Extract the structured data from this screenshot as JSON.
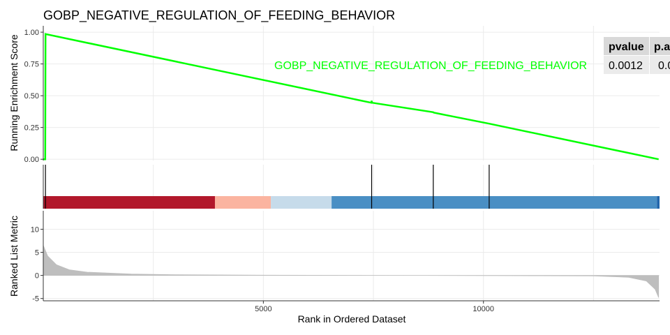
{
  "chart_data": {
    "type": "line",
    "title": "GOBP_NEGATIVE_REGULATION_OF_FEEDING_BEHAVIOR",
    "colors": {
      "curve": "#00ff00",
      "hit_line": "#000000",
      "ranked_fill": "#bebebe",
      "grid": "#ebebeb",
      "table_header": "#d9d9d9",
      "table_row": "#ebebeb",
      "color_bar": [
        "#b2182b",
        "#fbb4a0",
        "#c6dbea",
        "#4a8fc4",
        "#2166ac"
      ]
    },
    "xlim": [
      0,
      14000
    ],
    "x_ticks": [
      {
        "value": 5000,
        "label": "5000"
      },
      {
        "value": 10000,
        "label": "10000"
      }
    ],
    "xlabel": "Rank in Ordered Dataset",
    "enrichment": {
      "ylabel": "Running Enrichment Score",
      "ylim": [
        -0.01,
        1.05
      ],
      "y_ticks": [
        {
          "value": 0.0,
          "label": "0.00"
        },
        {
          "value": 0.25,
          "label": "0.25"
        },
        {
          "value": 0.5,
          "label": "0.50"
        },
        {
          "value": 0.75,
          "label": "0.75"
        },
        {
          "value": 1.0,
          "label": "1.00"
        }
      ],
      "series_label": "GOBP_NEGATIVE_REGULATION_OF_FEEDING_BEHAVIOR",
      "points": [
        [
          0,
          0.0
        ],
        [
          45,
          0.0
        ],
        [
          50,
          0.985
        ],
        [
          7450,
          0.445
        ],
        [
          7460,
          0.46
        ],
        [
          7470,
          0.445
        ],
        [
          8860,
          0.37
        ],
        [
          8870,
          0.367
        ],
        [
          10130,
          0.28
        ],
        [
          13980,
          0.0
        ]
      ]
    },
    "hits": [
      50,
      7460,
      8860,
      10130
    ],
    "color_bar": [
      {
        "start": 0,
        "end": 3900,
        "color": "#b2182b"
      },
      {
        "start": 3900,
        "end": 5170,
        "color": "#fbb4a0"
      },
      {
        "start": 5170,
        "end": 6550,
        "color": "#c6dbea"
      },
      {
        "start": 6550,
        "end": 13940,
        "color": "#4a8fc4"
      },
      {
        "start": 13940,
        "end": 14000,
        "color": "#2166ac"
      }
    ],
    "ranked": {
      "ylabel": "Ranked List Metric",
      "ylim": [
        -5.5,
        14
      ],
      "y_ticks": [
        {
          "value": -5,
          "label": "-5"
        },
        {
          "value": 0,
          "label": "0"
        },
        {
          "value": 5,
          "label": "5"
        },
        {
          "value": 10,
          "label": "10"
        }
      ],
      "points": [
        [
          0,
          6.5
        ],
        [
          100,
          4.2
        ],
        [
          300,
          2.3
        ],
        [
          600,
          1.2
        ],
        [
          1000,
          0.7
        ],
        [
          2000,
          0.3
        ],
        [
          3000,
          0.15
        ],
        [
          5000,
          0.05
        ],
        [
          8500,
          0.0
        ],
        [
          12500,
          -0.1
        ],
        [
          13300,
          -0.4
        ],
        [
          13700,
          -1.2
        ],
        [
          13900,
          -3.0
        ],
        [
          13980,
          -4.8
        ]
      ]
    },
    "table": {
      "headers": [
        "pvalue",
        "p.a"
      ],
      "row": [
        "0.0012",
        "0.0"
      ]
    },
    "grid": true
  }
}
